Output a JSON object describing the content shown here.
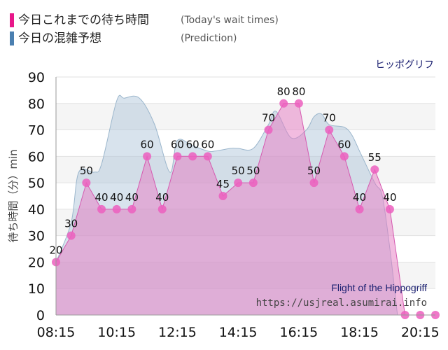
{
  "legend": {
    "today_label": "今日これまでの待ち時間",
    "today_en": "(Today's wait times)",
    "today_color": "#e8178a",
    "prediction_label": "今日の混雑予想",
    "prediction_en": "(Prediction)",
    "prediction_color": "#4a7fb0"
  },
  "ride_name": "ヒッポグリフ",
  "watermark": {
    "title": "Flight of the Hippogriff",
    "url": "https://usjreal.asumirai.info"
  },
  "chart_data": {
    "type": "area",
    "ylabel": "待ち時間（分）min",
    "ylim": [
      0,
      90
    ],
    "yticks": [
      0,
      10,
      20,
      30,
      40,
      50,
      60,
      70,
      80,
      90
    ],
    "xticks": [
      "08:15",
      "10:15",
      "12:15",
      "14:15",
      "16:15",
      "18:15",
      "20:15"
    ],
    "x_range": [
      "08:15",
      "20:45"
    ],
    "grid": true,
    "series": [
      {
        "name": "今日これまでの待ち時間",
        "color": "#e57ac2",
        "x": [
          "08:15",
          "08:45",
          "09:15",
          "09:45",
          "10:15",
          "10:45",
          "11:15",
          "11:45",
          "12:15",
          "12:45",
          "13:15",
          "13:45",
          "14:15",
          "14:45",
          "15:15",
          "15:45",
          "16:15",
          "16:45",
          "17:15",
          "17:45",
          "18:15",
          "18:45",
          "19:15",
          "19:45",
          "20:15",
          "20:45"
        ],
        "values": [
          20,
          30,
          50,
          40,
          40,
          40,
          60,
          40,
          60,
          60,
          60,
          45,
          50,
          50,
          70,
          80,
          80,
          50,
          70,
          60,
          40,
          55,
          40,
          0,
          0,
          0
        ]
      },
      {
        "name": "今日の混雑予想",
        "color": "#a9c2d6",
        "x": [
          "08:15",
          "08:45",
          "09:00",
          "09:30",
          "09:45",
          "10:15",
          "10:30",
          "11:00",
          "11:30",
          "12:00",
          "12:15",
          "12:45",
          "13:15",
          "13:30",
          "14:00",
          "14:15",
          "14:45",
          "15:15",
          "15:30",
          "16:00",
          "16:30",
          "16:45",
          "17:00",
          "17:15",
          "17:45",
          "18:00",
          "18:15",
          "18:45",
          "19:00",
          "19:15",
          "19:30"
        ],
        "values": [
          20,
          35,
          54,
          54,
          57,
          81,
          82,
          82,
          72,
          54,
          66,
          64,
          62,
          62,
          63,
          63,
          63,
          72,
          77,
          67,
          70,
          75,
          76,
          72,
          71,
          68,
          62,
          50,
          45,
          25,
          0
        ]
      }
    ]
  }
}
